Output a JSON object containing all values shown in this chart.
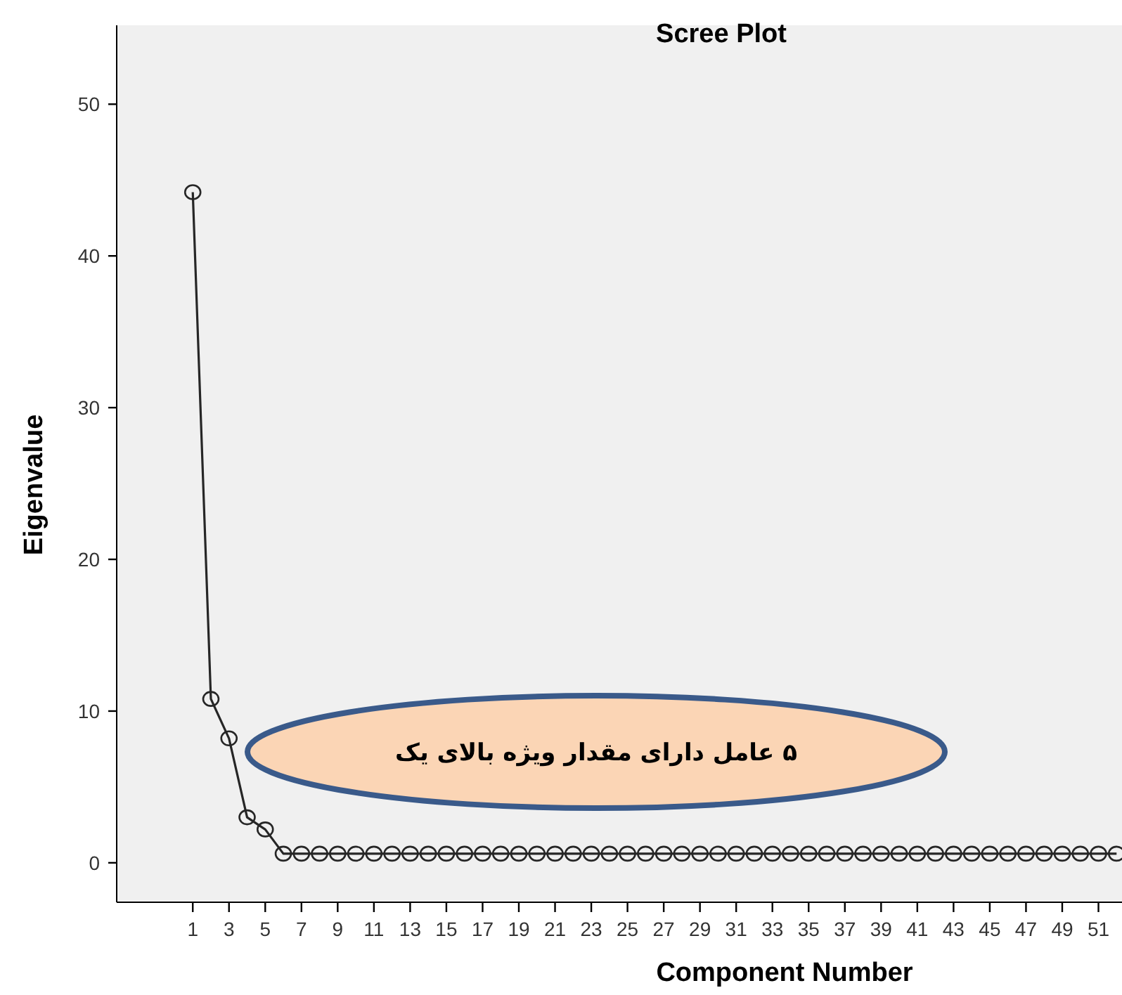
{
  "chart_data": {
    "type": "line",
    "title": "Scree Plot",
    "xlabel": "Component Number",
    "ylabel": "Eigenvalue",
    "x": [
      1,
      2,
      3,
      4,
      5,
      6,
      7,
      8,
      9,
      10,
      11,
      12,
      13,
      14,
      15,
      16,
      17,
      18,
      19,
      20,
      21,
      22,
      23,
      24,
      25,
      26,
      27,
      28,
      29,
      30,
      31,
      32,
      33,
      34,
      35,
      36,
      37,
      38,
      39,
      40,
      41,
      42,
      43,
      44,
      45,
      46,
      47,
      48,
      49,
      50,
      51,
      52
    ],
    "values": [
      44.2,
      10.8,
      8.2,
      3.0,
      2.2,
      0.6,
      0.6,
      0.6,
      0.6,
      0.6,
      0.6,
      0.6,
      0.6,
      0.6,
      0.6,
      0.6,
      0.6,
      0.6,
      0.6,
      0.6,
      0.6,
      0.6,
      0.6,
      0.6,
      0.6,
      0.6,
      0.6,
      0.6,
      0.6,
      0.6,
      0.6,
      0.6,
      0.6,
      0.6,
      0.6,
      0.6,
      0.6,
      0.6,
      0.6,
      0.6,
      0.6,
      0.6,
      0.6,
      0.6,
      0.6,
      0.6,
      0.6,
      0.6,
      0.6,
      0.6,
      0.6,
      0.6
    ],
    "color": "#262626",
    "marker": "circle",
    "line_style": "solid",
    "grid": false,
    "xlim": [
      -3.2,
      52.3
    ],
    "ylim": [
      -2.6,
      55.2
    ],
    "xticks": [
      1,
      3,
      5,
      7,
      9,
      11,
      13,
      15,
      17,
      19,
      21,
      23,
      25,
      27,
      29,
      31,
      33,
      35,
      37,
      39,
      41,
      43,
      45,
      47,
      49,
      51
    ],
    "yticks": [
      0,
      10,
      20,
      30,
      40,
      50
    ],
    "annotations": [
      "۵ عامل دارای مقدار ویژه بالای یک"
    ]
  }
}
